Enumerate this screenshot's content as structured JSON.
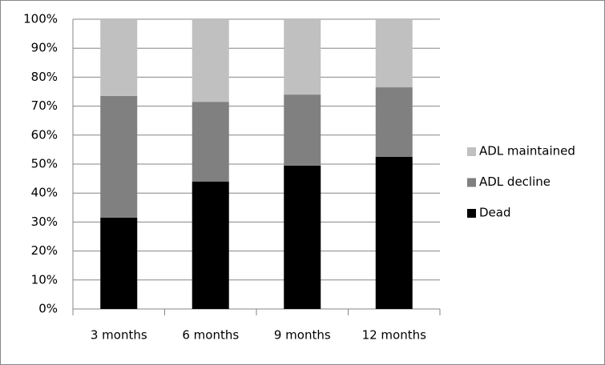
{
  "chart_data": {
    "type": "stacked_bar",
    "categories": [
      "3 months",
      "6 months",
      "9 months",
      "12 months"
    ],
    "series": [
      {
        "name": "Dead",
        "color": "#000000",
        "values": [
          31.5,
          44,
          49.5,
          52.5
        ]
      },
      {
        "name": "ADL decline",
        "color": "#808080",
        "values": [
          42,
          27.5,
          24.5,
          24
        ]
      },
      {
        "name": "ADL maintained",
        "color": "#c0c0c0",
        "values": [
          26.5,
          28.5,
          26,
          23.5
        ]
      }
    ],
    "ylim": [
      0,
      100
    ],
    "yticks": [
      {
        "value": 0,
        "label": "0%"
      },
      {
        "value": 10,
        "label": "10%"
      },
      {
        "value": 20,
        "label": "20%"
      },
      {
        "value": 30,
        "label": "30%"
      },
      {
        "value": 40,
        "label": "40%"
      },
      {
        "value": 50,
        "label": "50%"
      },
      {
        "value": 60,
        "label": "60%"
      },
      {
        "value": 70,
        "label": "70%"
      },
      {
        "value": 80,
        "label": "80%"
      },
      {
        "value": 90,
        "label": "90%"
      },
      {
        "value": 100,
        "label": "100%"
      }
    ],
    "grid": true,
    "legend": "right"
  }
}
